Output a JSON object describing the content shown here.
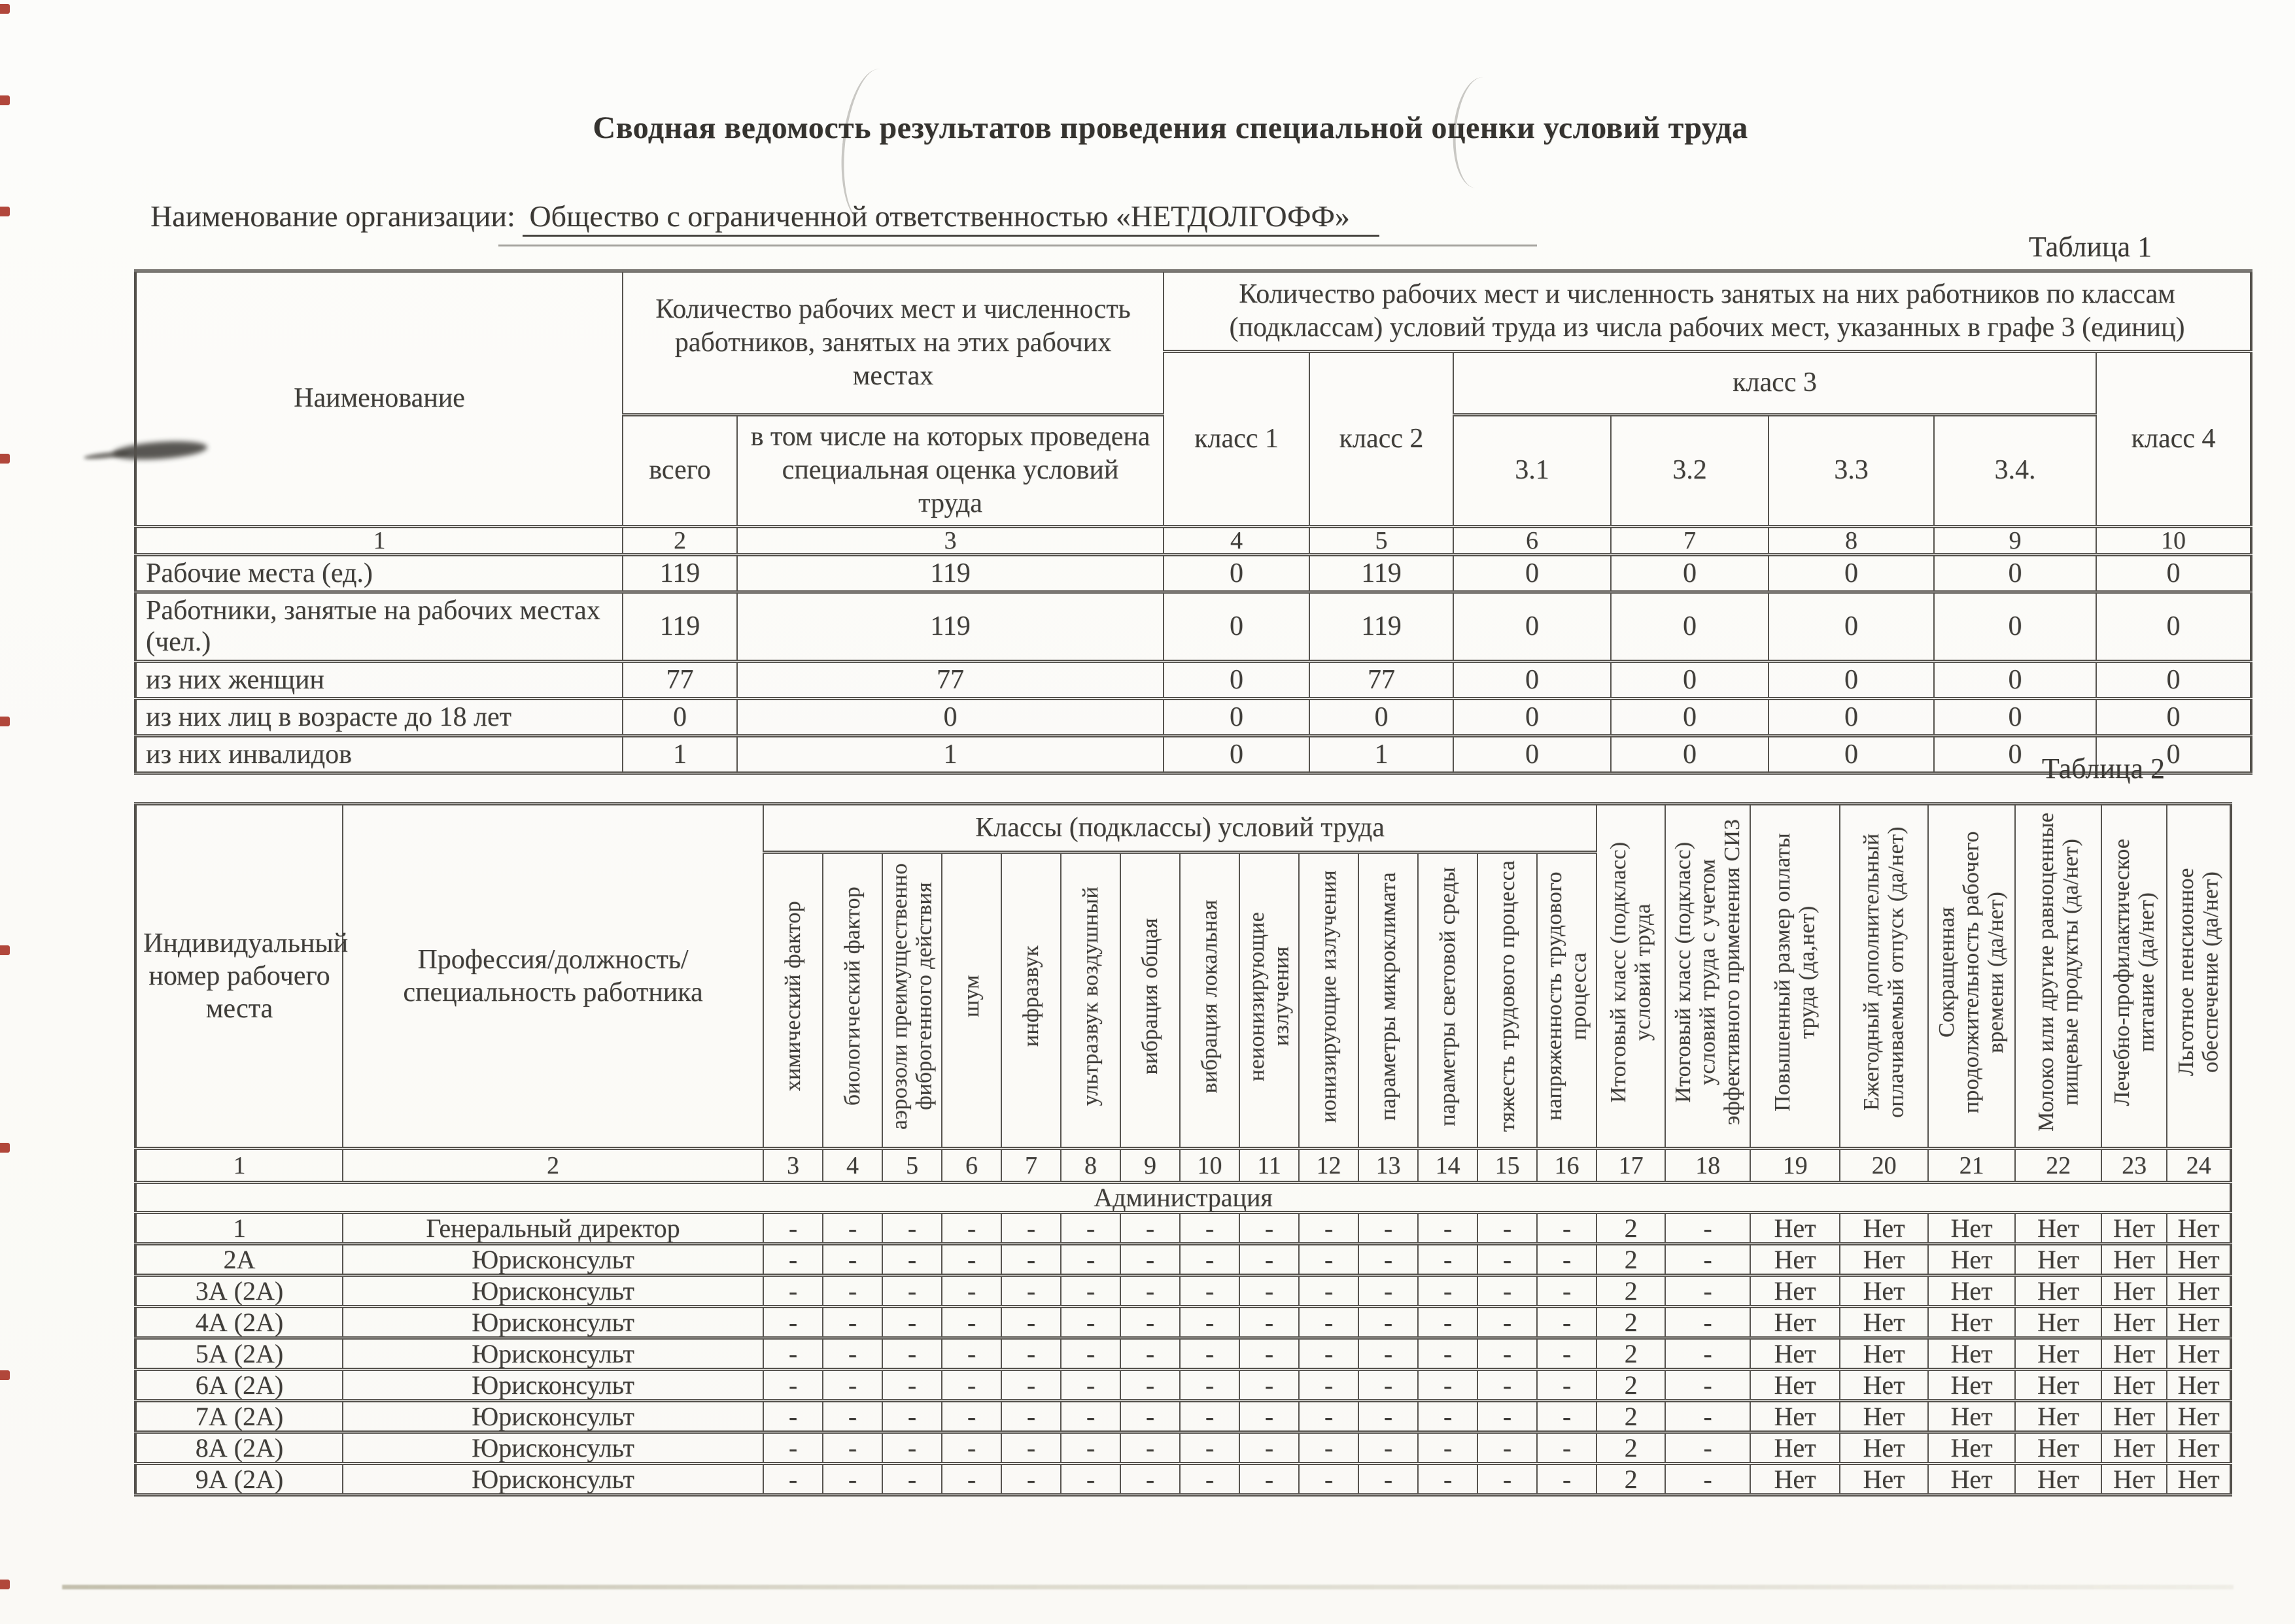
{
  "page": {
    "title": "Сводная ведомость результатов проведения специальной оценки условий труда",
    "org_label": "Наименование организации:",
    "org_value": "Общество с ограниченной ответственностью «НЕТДОЛГОФФ»",
    "table1_caption": "Таблица 1",
    "table2_caption": "Таблица 2"
  },
  "table1": {
    "header": {
      "name": "Наименование",
      "group_left": "Количество рабочих мест и численность работников, занятых на этих рабочих местах",
      "group_right": "Количество рабочих мест и численность занятых на них работников по классам (подклассам) условий труда из числа рабочих мест, указанных в графе 3 (единиц)",
      "col_total": "всего",
      "col_assessed": "в том числе на которых проведена специальная оценка условий труда",
      "class1": "класс 1",
      "class2": "класс 2",
      "class3": "класс 3",
      "class4": "класс 4",
      "class3_sub": [
        "3.1",
        "3.2",
        "3.3",
        "3.4."
      ]
    },
    "number_row": [
      "1",
      "2",
      "3",
      "4",
      "5",
      "6",
      "7",
      "8",
      "9",
      "10"
    ],
    "rows": [
      {
        "label": "Рабочие места (ед.)",
        "values": [
          "119",
          "119",
          "0",
          "119",
          "0",
          "0",
          "0",
          "0",
          "0"
        ]
      },
      {
        "label": "Работники, занятые на рабочих местах (чел.)",
        "values": [
          "119",
          "119",
          "0",
          "119",
          "0",
          "0",
          "0",
          "0",
          "0"
        ]
      },
      {
        "label": "из них женщин",
        "values": [
          "77",
          "77",
          "0",
          "77",
          "0",
          "0",
          "0",
          "0",
          "0"
        ]
      },
      {
        "label": "из них лиц в возрасте до 18 лет",
        "values": [
          "0",
          "0",
          "0",
          "0",
          "0",
          "0",
          "0",
          "0",
          "0"
        ]
      },
      {
        "label": "из них инвалидов",
        "values": [
          "1",
          "1",
          "0",
          "1",
          "0",
          "0",
          "0",
          "0",
          "0"
        ]
      }
    ]
  },
  "table2": {
    "header": {
      "col1": "Индивидуальный номер рабочего места",
      "col2": "Профессия/должность/специальность работника",
      "group": "Классы (подклассы) условий труда",
      "factor_cols": [
        "химический фактор",
        "биологический фактор",
        "аэрозоли преимущественно фиброгенного действия",
        "шум",
        "инфразвук",
        "ультразвук воздушный",
        "вибрация общая",
        "вибрация локальная",
        "неионизирующие излучения",
        "ионизирующие излучения",
        "параметры микроклимата",
        "параметры световой среды",
        "тяжесть трудового процесса",
        "напряженность трудового процесса"
      ],
      "result_cols": [
        "Итоговый класс (подкласс) условий труда",
        "Итоговый класс (подкласс) условий труда с учетом эффективного применения СИЗ",
        "Повышенный размер оплаты труда (да,нет)",
        "Ежегодный дополнительный оплачиваемый отпуск (да/нет)",
        "Сокращенная продолжительность рабочего времени (да/нет)",
        "Молоко или другие равноценные пищевые продукты (да/нет)",
        "Лечебно-профилактическое питание (да/нет)",
        "Льготное пенсионное обеспечение (да/нет)"
      ]
    },
    "number_row": [
      "1",
      "2",
      "3",
      "4",
      "5",
      "6",
      "7",
      "8",
      "9",
      "10",
      "11",
      "12",
      "13",
      "14",
      "15",
      "16",
      "17",
      "18",
      "19",
      "20",
      "21",
      "22",
      "23",
      "24"
    ],
    "section": "Администрация",
    "rows": [
      {
        "num": "1",
        "profession": "Генеральный директор",
        "factors": [
          "-",
          "-",
          "-",
          "-",
          "-",
          "-",
          "-",
          "-",
          "-",
          "-",
          "-",
          "-",
          "-",
          "-"
        ],
        "final_class": "2",
        "final_class_siz": "-",
        "benefits": [
          "Нет",
          "Нет",
          "Нет",
          "Нет",
          "Нет",
          "Нет"
        ]
      },
      {
        "num": "2А",
        "profession": "Юрисконсульт",
        "factors": [
          "-",
          "-",
          "-",
          "-",
          "-",
          "-",
          "-",
          "-",
          "-",
          "-",
          "-",
          "-",
          "-",
          "-"
        ],
        "final_class": "2",
        "final_class_siz": "-",
        "benefits": [
          "Нет",
          "Нет",
          "Нет",
          "Нет",
          "Нет",
          "Нет"
        ]
      },
      {
        "num": "3А (2А)",
        "profession": "Юрисконсульт",
        "factors": [
          "-",
          "-",
          "-",
          "-",
          "-",
          "-",
          "-",
          "-",
          "-",
          "-",
          "-",
          "-",
          "-",
          "-"
        ],
        "final_class": "2",
        "final_class_siz": "-",
        "benefits": [
          "Нет",
          "Нет",
          "Нет",
          "Нет",
          "Нет",
          "Нет"
        ]
      },
      {
        "num": "4А (2А)",
        "profession": "Юрисконсульт",
        "factors": [
          "-",
          "-",
          "-",
          "-",
          "-",
          "-",
          "-",
          "-",
          "-",
          "-",
          "-",
          "-",
          "-",
          "-"
        ],
        "final_class": "2",
        "final_class_siz": "-",
        "benefits": [
          "Нет",
          "Нет",
          "Нет",
          "Нет",
          "Нет",
          "Нет"
        ]
      },
      {
        "num": "5А (2А)",
        "profession": "Юрисконсульт",
        "factors": [
          "-",
          "-",
          "-",
          "-",
          "-",
          "-",
          "-",
          "-",
          "-",
          "-",
          "-",
          "-",
          "-",
          "-"
        ],
        "final_class": "2",
        "final_class_siz": "-",
        "benefits": [
          "Нет",
          "Нет",
          "Нет",
          "Нет",
          "Нет",
          "Нет"
        ]
      },
      {
        "num": "6А (2А)",
        "profession": "Юрисконсульт",
        "factors": [
          "-",
          "-",
          "-",
          "-",
          "-",
          "-",
          "-",
          "-",
          "-",
          "-",
          "-",
          "-",
          "-",
          "-"
        ],
        "final_class": "2",
        "final_class_siz": "-",
        "benefits": [
          "Нет",
          "Нет",
          "Нет",
          "Нет",
          "Нет",
          "Нет"
        ]
      },
      {
        "num": "7А (2А)",
        "profession": "Юрисконсульт",
        "factors": [
          "-",
          "-",
          "-",
          "-",
          "-",
          "-",
          "-",
          "-",
          "-",
          "-",
          "-",
          "-",
          "-",
          "-"
        ],
        "final_class": "2",
        "final_class_siz": "-",
        "benefits": [
          "Нет",
          "Нет",
          "Нет",
          "Нет",
          "Нет",
          "Нет"
        ]
      },
      {
        "num": "8А (2А)",
        "profession": "Юрисконсульт",
        "factors": [
          "-",
          "-",
          "-",
          "-",
          "-",
          "-",
          "-",
          "-",
          "-",
          "-",
          "-",
          "-",
          "-",
          "-"
        ],
        "final_class": "2",
        "final_class_siz": "-",
        "benefits": [
          "Нет",
          "Нет",
          "Нет",
          "Нет",
          "Нет",
          "Нет"
        ]
      },
      {
        "num": "9А (2А)",
        "profession": "Юрисконсульт",
        "factors": [
          "-",
          "-",
          "-",
          "-",
          "-",
          "-",
          "-",
          "-",
          "-",
          "-",
          "-",
          "-",
          "-",
          "-"
        ],
        "final_class": "2",
        "final_class_siz": "-",
        "benefits": [
          "Нет",
          "Нет",
          "Нет",
          "Нет",
          "Нет",
          "Нет"
        ]
      }
    ]
  }
}
